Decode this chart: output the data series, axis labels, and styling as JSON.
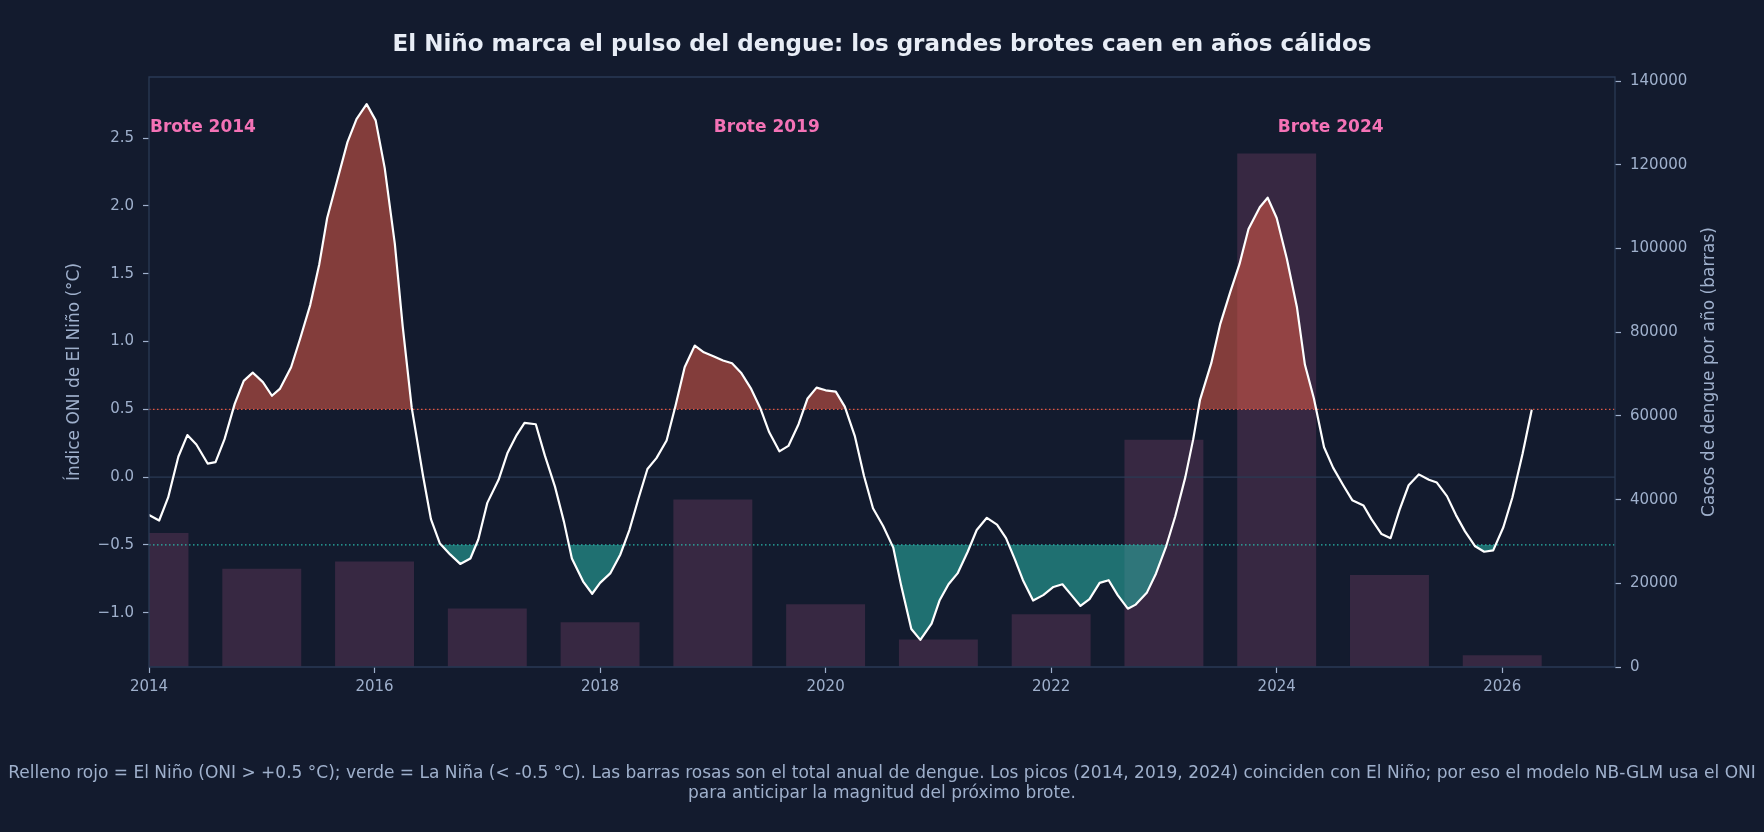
{
  "chart_data": {
    "type": "line",
    "title": "El Niño marca el pulso del dengue: los grandes brotes caen en años cálidos",
    "ylabel": "Índice ONI de El Niño (°C)",
    "y2label": "Casos de dengue por año (barras)",
    "xlim": [
      2014,
      2027
    ],
    "xticks": [
      2014,
      2016,
      2018,
      2020,
      2022,
      2024,
      2026
    ],
    "ylim": [
      -1.4,
      2.95
    ],
    "yticks": [
      {
        "value": -1,
        "label": "−1.0"
      },
      {
        "value": -0.5,
        "label": "−0.5"
      },
      {
        "value": 0,
        "label": "0.0"
      },
      0.5,
      {
        "value": 1,
        "label": "1.0"
      },
      1.5,
      {
        "value": 2,
        "label": "2.0"
      },
      2.5
    ],
    "y2lim": [
      0,
      141000
    ],
    "y2ticks": [
      0,
      20000,
      40000,
      60000,
      80000,
      100000,
      120000,
      140000
    ],
    "series": [
      {
        "type": "bar",
        "axis": "y2",
        "color": "#372842",
        "x": [
          2014,
          2015,
          2016,
          2017,
          2018,
          2019,
          2020,
          2021,
          2022,
          2023,
          2024,
          2025,
          2026
        ],
        "values": [
          32000,
          23500,
          25200,
          14000,
          10700,
          40000,
          15000,
          6600,
          12600,
          54300,
          122700,
          22000,
          2800
        ]
      },
      {
        "color": "#ffffff",
        "line_style": "solid",
        "x": [
          2014.0,
          2014.09,
          2014.17,
          2014.26,
          2014.34,
          2014.42,
          2014.52,
          2014.59,
          2014.67,
          2014.76,
          2014.84,
          2014.92,
          2015.01,
          2015.09,
          2015.16,
          2015.26,
          2015.34,
          2015.43,
          2015.51,
          2015.58,
          2015.67,
          2015.76,
          2015.84,
          2015.93,
          2016.01,
          2016.09,
          2016.18,
          2016.25,
          2016.33,
          2016.43,
          2016.5,
          2016.58,
          2016.67,
          2016.76,
          2016.85,
          2016.92,
          2017.0,
          2017.1,
          2017.18,
          2017.26,
          2017.33,
          2017.43,
          2017.51,
          2017.6,
          2017.68,
          2017.75,
          2017.85,
          2017.93,
          2018.0,
          2018.09,
          2018.18,
          2018.26,
          2018.34,
          2018.42,
          2018.5,
          2018.59,
          2018.67,
          2018.75,
          2018.84,
          2018.92,
          2019.01,
          2019.09,
          2019.17,
          2019.25,
          2019.34,
          2019.42,
          2019.5,
          2019.59,
          2019.67,
          2019.76,
          2019.84,
          2019.92,
          2020.0,
          2020.09,
          2020.17,
          2020.26,
          2020.34,
          2020.42,
          2020.51,
          2020.6,
          2020.67,
          2020.76,
          2020.84,
          2020.94,
          2021.01,
          2021.09,
          2021.17,
          2021.26,
          2021.34,
          2021.43,
          2021.52,
          2021.6,
          2021.68,
          2021.75,
          2021.84,
          2021.93,
          2022.02,
          2022.1,
          2022.18,
          2022.26,
          2022.34,
          2022.43,
          2022.51,
          2022.59,
          2022.68,
          2022.75,
          2022.85,
          2022.93,
          2023.02,
          2023.1,
          2023.19,
          2023.26,
          2023.32,
          2023.42,
          2023.5,
          2023.59,
          2023.67,
          2023.75,
          2023.85,
          2023.92,
          2024.0,
          2024.09,
          2024.18,
          2024.25,
          2024.33,
          2024.42,
          2024.5,
          2024.59,
          2024.67,
          2024.77,
          2024.84,
          2024.93,
          2025.01,
          2025.09,
          2025.17,
          2025.26,
          2025.35,
          2025.42,
          2025.51,
          2025.59,
          2025.67,
          2025.76,
          2025.84,
          2025.92,
          2026.01,
          2026.09,
          2026.18,
          2026.26
        ],
        "values": [
          -0.28,
          -0.32,
          -0.15,
          0.15,
          0.31,
          0.24,
          0.1,
          0.11,
          0.28,
          0.54,
          0.71,
          0.77,
          0.7,
          0.6,
          0.65,
          0.81,
          1.02,
          1.27,
          1.57,
          1.91,
          2.19,
          2.47,
          2.64,
          2.75,
          2.63,
          2.28,
          1.72,
          1.11,
          0.51,
          0.01,
          -0.31,
          -0.49,
          -0.57,
          -0.64,
          -0.6,
          -0.46,
          -0.19,
          -0.02,
          0.18,
          0.31,
          0.4,
          0.39,
          0.16,
          -0.07,
          -0.33,
          -0.6,
          -0.77,
          -0.86,
          -0.78,
          -0.71,
          -0.57,
          -0.39,
          -0.16,
          0.06,
          0.14,
          0.27,
          0.53,
          0.81,
          0.97,
          0.92,
          0.89,
          0.86,
          0.84,
          0.77,
          0.65,
          0.51,
          0.33,
          0.19,
          0.23,
          0.39,
          0.58,
          0.66,
          0.64,
          0.63,
          0.52,
          0.3,
          0.01,
          -0.23,
          -0.36,
          -0.52,
          -0.8,
          -1.12,
          -1.2,
          -1.08,
          -0.91,
          -0.79,
          -0.71,
          -0.55,
          -0.39,
          -0.3,
          -0.35,
          -0.45,
          -0.61,
          -0.76,
          -0.91,
          -0.87,
          -0.81,
          -0.79,
          -0.87,
          -0.95,
          -0.9,
          -0.78,
          -0.76,
          -0.87,
          -0.97,
          -0.94,
          -0.85,
          -0.71,
          -0.51,
          -0.29,
          0.0,
          0.28,
          0.57,
          0.84,
          1.13,
          1.37,
          1.57,
          1.83,
          1.99,
          2.06,
          1.91,
          1.61,
          1.25,
          0.83,
          0.58,
          0.22,
          0.07,
          -0.06,
          -0.17,
          -0.21,
          -0.31,
          -0.42,
          -0.45,
          -0.24,
          -0.06,
          0.02,
          -0.02,
          -0.04,
          -0.14,
          -0.28,
          -0.4,
          -0.51,
          -0.55,
          -0.54,
          -0.37,
          -0.15,
          0.17,
          0.49
        ]
      }
    ],
    "ref_lines": [
      {
        "axis": "y",
        "value": 0,
        "color": "#2a3a55",
        "line_style": "solid"
      },
      {
        "axis": "y",
        "value": 0.5,
        "color": "#e05a47",
        "line_style": "dotted"
      },
      {
        "axis": "y",
        "value": -0.5,
        "color": "#2ab7a9",
        "line_style": "dotted"
      }
    ],
    "annotations": [
      "Brote 2014",
      "Brote 2019",
      "Brote 2024",
      "Relleno rojo = El Niño (ONI > +0.5 °C); verde = La Niña (< -0.5 °C). Las barras rosas son el total anual de dengue. Los picos (2014, 2019, 2024) coinciden con El Niño; por eso el modelo NB-GLM usa el ONI para anticipar la magnitud del próximo brote."
    ],
    "marker": "none",
    "legend": false,
    "grid": false
  }
}
